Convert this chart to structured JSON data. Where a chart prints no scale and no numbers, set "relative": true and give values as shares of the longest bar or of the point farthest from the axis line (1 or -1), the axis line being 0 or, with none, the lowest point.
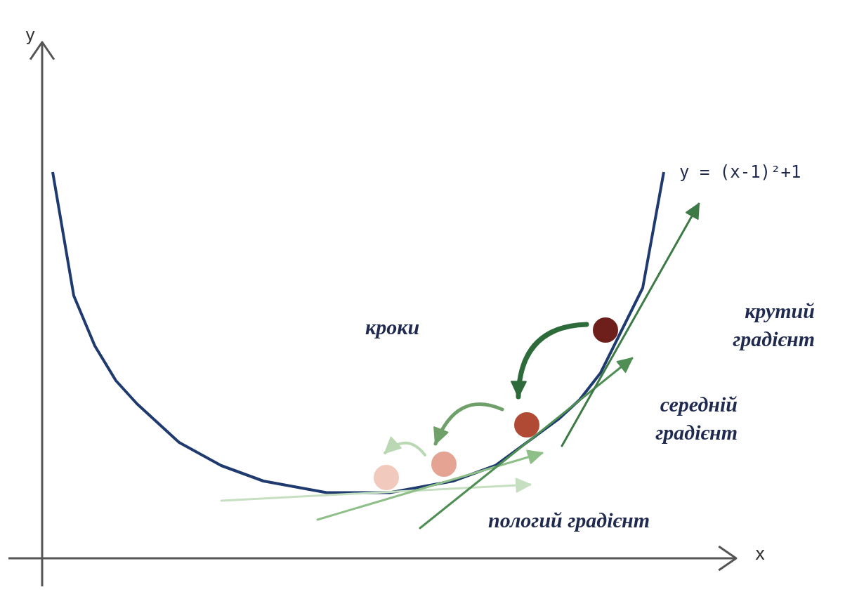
{
  "chart_data": {
    "type": "line",
    "relative": true,
    "xlabel": "x",
    "categories": [
      null,
      null,
      null,
      null,
      null,
      null,
      null,
      null,
      null,
      null,
      null,
      null,
      null,
      null,
      null,
      null,
      null,
      null,
      null,
      null,
      null,
      null,
      null,
      null,
      null,
      null,
      null,
      null,
      null,
      null
    ],
    "series": [
      {
        "name": "y = (x-1)²+1",
        "marker": "none",
        "color": "#1f3a6e",
        "values": [
          1.0,
          0.68,
          0.55,
          0.46,
          0.4,
          0.35,
          0.3,
          0.27,
          0.24,
          0.22,
          0.2,
          0.19,
          0.18,
          0.17,
          0.17,
          0.17,
          0.17,
          0.18,
          0.19,
          0.2,
          0.22,
          0.24,
          0.28,
          0.32,
          0.36,
          0.41,
          0.48,
          0.59,
          0.7,
          1.0
        ]
      }
    ],
    "annotations": [
      "кроки",
      "крутий градієнт",
      "середній градієнт",
      "пологий градієнт",
      "y"
    ]
  }
}
